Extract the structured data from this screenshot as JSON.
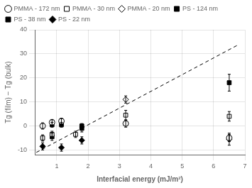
{
  "chart_data": {
    "type": "scatter",
    "title": "",
    "xlabel": "Interfacial energy (mJ/m²)",
    "ylabel": "Tg (film) − Tg (bulk)",
    "xlim": [
      0.3,
      7.0
    ],
    "ylim": [
      -12,
      40
    ],
    "xticks": [
      1,
      2,
      3,
      4,
      5,
      6,
      7
    ],
    "yticks": [
      -10,
      0,
      10,
      20,
      30,
      40
    ],
    "grid": true,
    "legend": "upper left",
    "series": [
      {
        "type": "line",
        "line_style": "dashed",
        "color": "black",
        "x": [
          0.35,
          6.75
        ],
        "values": [
          -11.0,
          33.5
        ]
      },
      {
        "name": "PMMA - 172 nm",
        "marker": "circle",
        "color": "white",
        "x": [
          0.55,
          0.85,
          1.15,
          3.2,
          6.5
        ],
        "values": [
          0.0,
          1.5,
          2.0,
          1.0,
          -5.0
        ],
        "yerr": [
          1.3,
          1.2,
          1.2,
          1.5,
          1.5
        ]
      },
      {
        "name": "PMMA - 30 nm",
        "marker": "square",
        "color": "white",
        "x": [
          0.55,
          0.85,
          1.6,
          3.2,
          6.5
        ],
        "values": [
          -5.0,
          -3.5,
          -3.5,
          4.5,
          4.0
        ],
        "yerr": [
          1.3,
          1.3,
          1.3,
          2.0,
          2.0
        ]
      },
      {
        "name": "PMMA - 20 nm",
        "marker": "diamond",
        "color": "white",
        "x": [
          3.2
        ],
        "values": [
          11.0
        ],
        "yerr": [
          1.5
        ]
      },
      {
        "name": "PS - 124 nm",
        "marker": "square",
        "color": "black",
        "x": [
          0.85,
          1.15,
          1.8
        ],
        "values": [
          0.5,
          0.5,
          0.0
        ],
        "yerr": [
          1.0,
          1.0,
          1.0
        ]
      },
      {
        "name": "PS - 38 nm",
        "marker": "square",
        "color": "black",
        "x": [
          0.85,
          1.8,
          6.5
        ],
        "values": [
          -4.5,
          -1.0,
          18.0
        ],
        "yerr": [
          1.5,
          1.5,
          3.5
        ]
      },
      {
        "name": "PS - 22 nm",
        "marker": "diamond",
        "color": "black",
        "x": [
          0.55,
          1.15,
          1.8,
          6.5
        ],
        "values": [
          -8.5,
          -9.0,
          -6.0,
          -5.5
        ],
        "yerr": [
          1.5,
          1.5,
          1.5,
          2.5
        ]
      }
    ]
  }
}
